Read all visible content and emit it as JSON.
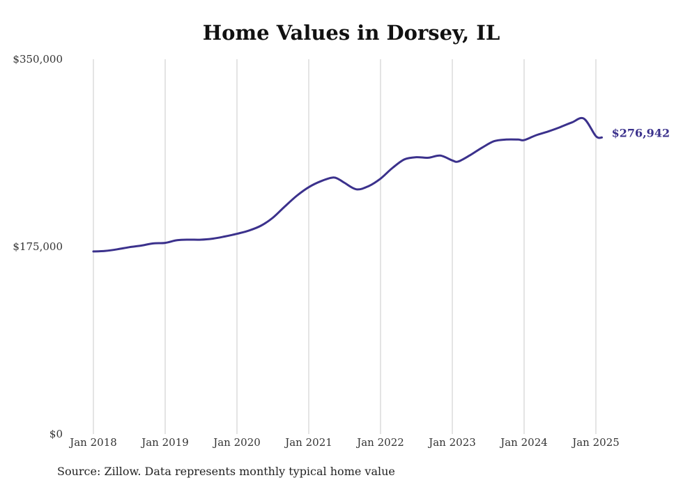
{
  "chart_data": {
    "type": "line",
    "title": "Home Values in Dorsey, IL",
    "xlabel": "",
    "ylabel": "",
    "source": "Source: Zillow. Data represents monthly typical home value",
    "ylim": [
      0,
      350000
    ],
    "y_ticks": [
      {
        "value": 0,
        "label": "$0"
      },
      {
        "value": 175000,
        "label": "$175,000"
      },
      {
        "value": 350000,
        "label": "$350,000"
      }
    ],
    "x_ticks": [
      {
        "value": "2018-01",
        "label": "Jan 2018"
      },
      {
        "value": "2019-01",
        "label": "Jan 2019"
      },
      {
        "value": "2020-01",
        "label": "Jan 2020"
      },
      {
        "value": "2021-01",
        "label": "Jan 2021"
      },
      {
        "value": "2022-01",
        "label": "Jan 2022"
      },
      {
        "value": "2023-01",
        "label": "Jan 2023"
      },
      {
        "value": "2024-01",
        "label": "Jan 2024"
      },
      {
        "value": "2025-01",
        "label": "Jan 2025"
      }
    ],
    "grid_x": true,
    "grid_y": false,
    "line_color": "#3b318c",
    "end_label": "$276,942",
    "series": [
      {
        "name": "",
        "x": [
          "2018-01",
          "2018-03",
          "2018-05",
          "2018-07",
          "2018-09",
          "2018-11",
          "2019-01",
          "2019-03",
          "2019-05",
          "2019-07",
          "2019-09",
          "2019-11",
          "2020-01",
          "2020-03",
          "2020-05",
          "2020-07",
          "2020-09",
          "2020-11",
          "2021-01",
          "2021-03",
          "2021-05",
          "2021-06",
          "2021-07",
          "2021-09",
          "2021-11",
          "2022-01",
          "2022-03",
          "2022-05",
          "2022-07",
          "2022-09",
          "2022-11",
          "2023-01",
          "2023-02",
          "2023-04",
          "2023-06",
          "2023-08",
          "2023-10",
          "2023-12",
          "2024-01",
          "2024-03",
          "2024-05",
          "2024-07",
          "2024-09",
          "2024-11",
          "2025-01",
          "2025-02"
        ],
        "values": [
          170500,
          171000,
          172500,
          174500,
          176000,
          178000,
          178500,
          181000,
          181500,
          181500,
          182500,
          184500,
          187000,
          190000,
          194500,
          202000,
          212500,
          222500,
          230500,
          236000,
          239500,
          238000,
          234500,
          228500,
          231500,
          238500,
          248500,
          256500,
          258500,
          258000,
          260000,
          255500,
          254500,
          260500,
          267500,
          273500,
          275000,
          275000,
          274500,
          279000,
          282500,
          286500,
          291000,
          294500,
          278200,
          276942
        ]
      }
    ]
  }
}
